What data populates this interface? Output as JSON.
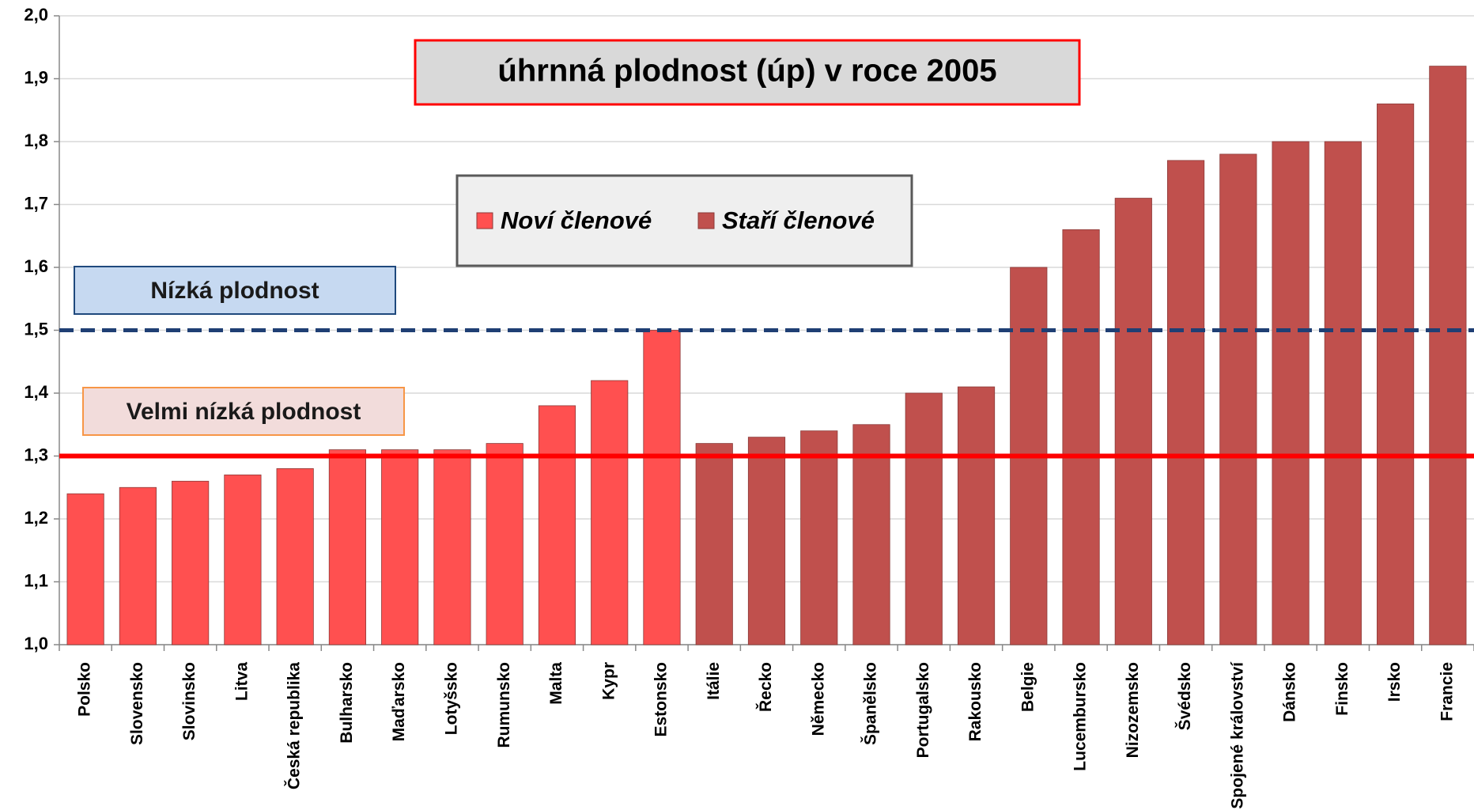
{
  "chart_data": {
    "type": "bar",
    "title": "úhrnná plodnost (úp) v roce 2005",
    "categories": [
      "Polsko",
      "Slovensko",
      "Slovinsko",
      "Litva",
      "Česká republika",
      "Bulharsko",
      "Maďarsko",
      "Lotyšsko",
      "Rumunsko",
      "Malta",
      "Kypr",
      "Estonsko",
      "Itálie",
      "Řecko",
      "Německo",
      "Španělsko",
      "Portugalsko",
      "Rakousko",
      "Belgie",
      "Lucembursko",
      "Nizozemsko",
      "Švédsko",
      "Spojené království",
      "Dánsko",
      "Finsko",
      "Irsko",
      "Francie"
    ],
    "series": [
      {
        "name": "Noví členové",
        "color": "#ff5050",
        "values": [
          1.24,
          1.25,
          1.26,
          1.27,
          1.28,
          1.31,
          1.31,
          1.31,
          1.32,
          1.38,
          1.42,
          1.5,
          null,
          null,
          null,
          null,
          null,
          null,
          null,
          null,
          null,
          null,
          null,
          null,
          null,
          null,
          null
        ]
      },
      {
        "name": "Staří členové",
        "color": "#c0504d",
        "values": [
          null,
          null,
          null,
          null,
          null,
          null,
          null,
          null,
          null,
          null,
          null,
          null,
          1.32,
          1.33,
          1.34,
          1.35,
          1.4,
          1.41,
          1.6,
          1.66,
          1.71,
          1.77,
          1.78,
          1.8,
          1.8,
          1.86,
          1.92
        ]
      }
    ],
    "ylim": [
      1.0,
      2.0
    ],
    "yticks": [
      {
        "value": 1.0,
        "label": "1,0"
      },
      {
        "value": 1.1,
        "label": "1,1"
      },
      {
        "value": 1.2,
        "label": "1,2"
      },
      {
        "value": 1.3,
        "label": "1,3"
      },
      {
        "value": 1.4,
        "label": "1,4"
      },
      {
        "value": 1.5,
        "label": "1,5"
      },
      {
        "value": 1.6,
        "label": "1,6"
      },
      {
        "value": 1.7,
        "label": "1,7"
      },
      {
        "value": 1.8,
        "label": "1,8"
      },
      {
        "value": 1.9,
        "label": "1,9"
      },
      {
        "value": 2.0,
        "label": "2,0"
      }
    ],
    "grid": true,
    "reference_lines": [
      {
        "value": 1.5,
        "text": "Nízká plodnost",
        "color": "#1f3f74",
        "dashed": true
      },
      {
        "value": 1.3,
        "text": "Velmi nízká plodnost",
        "color": "#ff0000",
        "dashed": false
      }
    ]
  }
}
